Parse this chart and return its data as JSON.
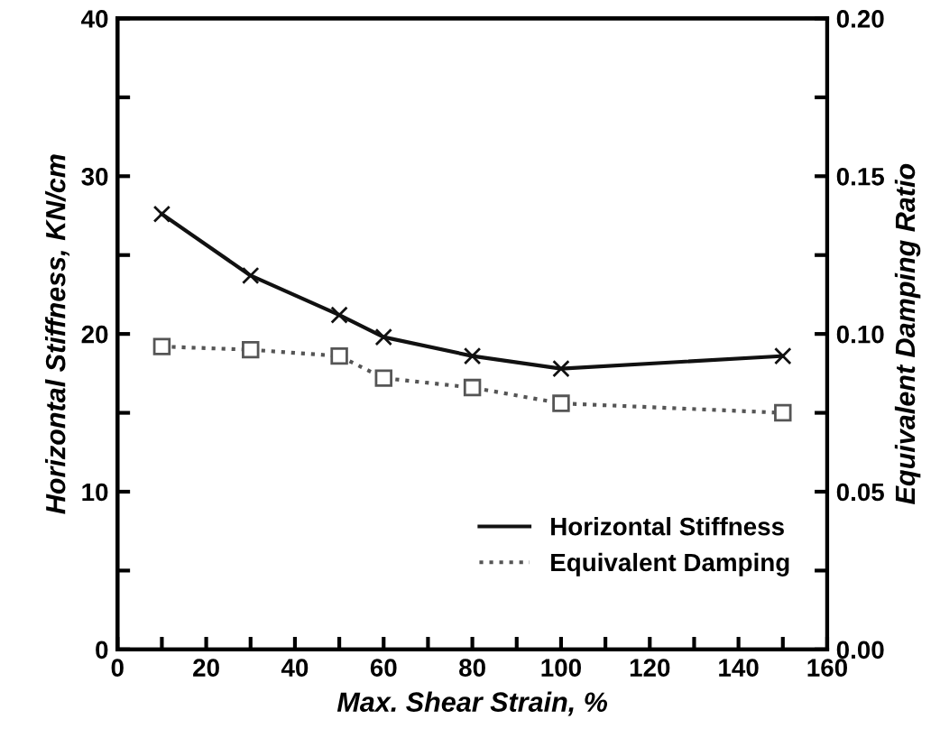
{
  "chart_data": {
    "type": "line",
    "xlabel": "Max. Shear Strain, %",
    "ylabel": "Horizontal Stiffness, KN/cm",
    "y2label": "Equivalent Damping Ratio",
    "x": [
      10,
      30,
      50,
      60,
      80,
      100,
      150
    ],
    "series": [
      {
        "name": "Horizontal Stiffness",
        "color": "#111111",
        "values": [
          27.6,
          23.7,
          21.2,
          19.8,
          18.6,
          17.8,
          18.6
        ],
        "marker": "cross",
        "line_style": "solid"
      },
      {
        "name": "Equivalent Damping",
        "color": "#555555",
        "values": [
          0.096,
          0.095,
          0.093,
          0.086,
          0.083,
          0.078,
          0.075
        ],
        "marker": "square",
        "line_style": "dotted",
        "axis": "y2"
      }
    ],
    "xlim": [
      0,
      160
    ],
    "ylim": [
      0,
      40
    ],
    "y2lim": [
      0,
      0.2
    ],
    "xticks": [
      0,
      {
        "value": 10,
        "label": null
      },
      20,
      {
        "value": 30,
        "label": null
      },
      40,
      {
        "value": 50,
        "label": null
      },
      60,
      {
        "value": 70,
        "label": null
      },
      80,
      {
        "value": 90,
        "label": null
      },
      100,
      {
        "value": 110,
        "label": null
      },
      120,
      {
        "value": 130,
        "label": null
      },
      140,
      {
        "value": 150,
        "label": null
      },
      160
    ],
    "yticks": [
      0,
      {
        "value": 5,
        "label": null
      },
      10,
      {
        "value": 15,
        "label": null
      },
      20,
      {
        "value": 25,
        "label": null
      },
      30,
      {
        "value": 35,
        "label": null
      },
      40
    ],
    "y2ticks": [
      "0.00",
      {
        "value": 0.025,
        "label": null
      },
      {
        "value": 0.05,
        "label": "0.05"
      },
      {
        "value": 0.075,
        "label": null
      },
      {
        "value": 0.1,
        "label": "0.10"
      },
      {
        "value": 0.125,
        "label": null
      },
      {
        "value": 0.15,
        "label": "0.15"
      },
      {
        "value": 0.175,
        "label": null
      },
      {
        "value": 0.2,
        "label": "0.20"
      }
    ],
    "grid": false,
    "legend": "bottom right"
  }
}
